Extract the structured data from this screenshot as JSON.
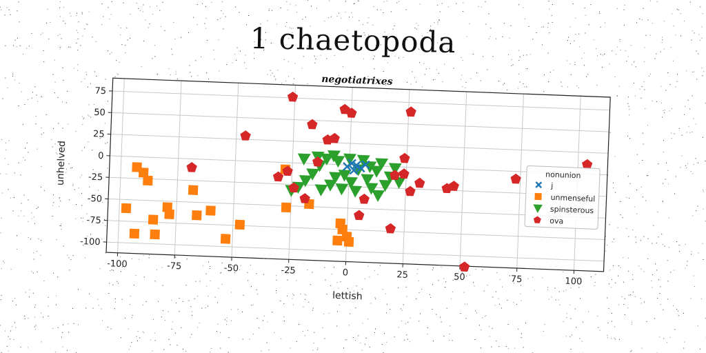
{
  "page": {
    "title": "1 chaetopoda"
  },
  "chart_data": {
    "type": "scatter",
    "title": "negotiatrixes",
    "xlabel": "lettish",
    "ylabel": "unhelved",
    "xlim": [
      -105,
      113
    ],
    "ylim": [
      -112,
      90
    ],
    "xticks": [
      -100,
      -75,
      -50,
      -25,
      0,
      25,
      50,
      75,
      100
    ],
    "yticks": [
      75,
      50,
      25,
      0,
      -25,
      -50,
      -75,
      -100
    ],
    "grid": true,
    "legend": {
      "title": "nonunion",
      "placement": "right"
    },
    "series": [
      {
        "name": "j",
        "marker": "x",
        "color": "#1f77b4",
        "points": [
          [
            -1,
            -2
          ],
          [
            1,
            2
          ],
          [
            3,
            0
          ],
          [
            5,
            -3
          ],
          [
            7,
            1
          ],
          [
            2,
            -6
          ]
        ]
      },
      {
        "name": "unmenseful",
        "marker": "square",
        "color": "#ff7f0e",
        "points": [
          [
            -93,
            -12
          ],
          [
            -90,
            -18
          ],
          [
            -88,
            -27
          ],
          [
            -97,
            -60
          ],
          [
            -93,
            -89
          ],
          [
            -84,
            -89
          ],
          [
            -85,
            -72
          ],
          [
            -79,
            -57
          ],
          [
            -78,
            -65
          ],
          [
            -68,
            -36
          ],
          [
            -66,
            -65
          ],
          [
            -60,
            -59
          ],
          [
            -53,
            -91
          ],
          [
            -47,
            -74
          ],
          [
            -28,
            -8
          ],
          [
            -27,
            -52
          ],
          [
            -17,
            -47
          ],
          [
            -3,
            -68
          ],
          [
            -2,
            -75
          ],
          [
            -4,
            -88
          ],
          [
            0,
            -83
          ],
          [
            1,
            -89
          ]
        ]
      },
      {
        "name": "spinsterous",
        "marker": "triangle-down",
        "color": "#2ca02c",
        "points": [
          [
            -25,
            -32
          ],
          [
            -22,
            -28
          ],
          [
            -19,
            -20
          ],
          [
            -16,
            -12
          ],
          [
            -13,
            -2
          ],
          [
            -10,
            6
          ],
          [
            -8,
            -24
          ],
          [
            -6,
            -15
          ],
          [
            -5,
            4
          ],
          [
            -3,
            -28
          ],
          [
            -2,
            -12
          ],
          [
            0,
            7
          ],
          [
            1,
            -20
          ],
          [
            3,
            -30
          ],
          [
            4,
            -5
          ],
          [
            6,
            6
          ],
          [
            8,
            -16
          ],
          [
            10,
            -26
          ],
          [
            12,
            -6
          ],
          [
            14,
            3
          ],
          [
            16,
            -22
          ],
          [
            18,
            -12
          ],
          [
            20,
            -2
          ],
          [
            22,
            -18
          ],
          [
            -12,
            -30
          ],
          [
            -7,
            10
          ],
          [
            9,
            -1
          ],
          [
            -14,
            8
          ],
          [
            -20,
            5
          ],
          [
            13,
            -34
          ]
        ]
      },
      {
        "name": "ova",
        "marker": "pentagon",
        "color": "#d62728",
        "points": [
          [
            -26,
            76
          ],
          [
            -3,
            64
          ],
          [
            0,
            60
          ],
          [
            26,
            64
          ],
          [
            -17,
            45
          ],
          [
            -46,
            29
          ],
          [
            -10,
            28
          ],
          [
            -7,
            30
          ],
          [
            -14,
            2
          ],
          [
            -27,
            -10
          ],
          [
            -31,
            -17
          ],
          [
            -69,
            -10
          ],
          [
            -24,
            -29
          ],
          [
            -19,
            -41
          ],
          [
            7,
            -39
          ],
          [
            5,
            -58
          ],
          [
            19,
            -72
          ],
          [
            20,
            -10
          ],
          [
            24,
            -8
          ],
          [
            27,
            -28
          ],
          [
            31,
            -18
          ],
          [
            24,
            10
          ],
          [
            43,
            -23
          ],
          [
            46,
            -20
          ],
          [
            73,
            -9
          ],
          [
            104,
            11
          ],
          [
            52,
            -113
          ]
        ]
      }
    ]
  }
}
